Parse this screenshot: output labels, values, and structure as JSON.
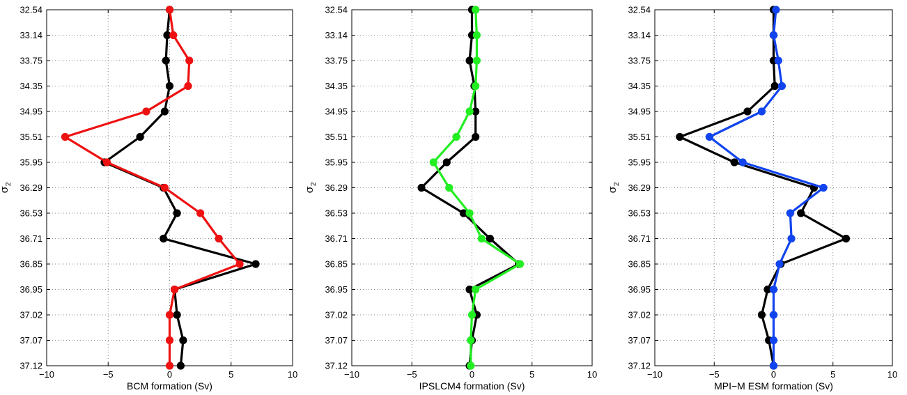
{
  "chart_data": [
    {
      "type": "line",
      "xlabel": "BCM formation (Sv)",
      "ylabel": {
        "symbol": "σ",
        "subscript": "2"
      },
      "xlim": [
        -10,
        10
      ],
      "xticks": [
        "−10",
        "−5",
        "0",
        "5",
        "10"
      ],
      "yticks": [
        "32.54",
        "33.14",
        "33.75",
        "34.35",
        "34.95",
        "35.51",
        "35.95",
        "36.29",
        "36.53",
        "36.71",
        "36.85",
        "36.95",
        "37.02",
        "37.07",
        "37.12"
      ],
      "grid": true,
      "series": [
        {
          "color": "#000000",
          "values": [
            0.0,
            -0.2,
            -0.3,
            0.0,
            -0.4,
            -2.4,
            -5.3,
            -0.5,
            0.6,
            -0.5,
            7.0,
            0.4,
            0.6,
            1.1,
            0.9
          ]
        },
        {
          "color": "#ee1111",
          "values": [
            0.0,
            0.3,
            1.6,
            1.5,
            -1.9,
            -8.5,
            -5.1,
            -0.4,
            2.5,
            4.0,
            5.7,
            0.4,
            0.0,
            0.0,
            0.0
          ]
        }
      ]
    },
    {
      "type": "line",
      "xlabel": "IPSLCM4 formation (Sv)",
      "ylabel": {
        "symbol": "σ",
        "subscript": "2"
      },
      "xlim": [
        -10,
        10
      ],
      "xticks": [
        "−10",
        "−5",
        "0",
        "5",
        "10"
      ],
      "yticks": [
        "32.54",
        "33.14",
        "33.75",
        "34.35",
        "34.95",
        "35.51",
        "35.95",
        "36.29",
        "36.53",
        "36.71",
        "36.85",
        "36.95",
        "37.02",
        "37.07",
        "37.12"
      ],
      "grid": true,
      "series": [
        {
          "color": "#000000",
          "values": [
            0.0,
            0.0,
            -0.2,
            0.2,
            0.3,
            0.3,
            -2.1,
            -4.2,
            -0.7,
            1.5,
            3.9,
            -0.2,
            0.4,
            0.0,
            -0.2
          ]
        },
        {
          "color": "#22ee22",
          "values": [
            0.3,
            0.4,
            0.4,
            0.3,
            -0.2,
            -1.3,
            -3.2,
            -1.9,
            -0.2,
            0.8,
            4.0,
            0.3,
            0.0,
            -0.1,
            -0.1
          ]
        }
      ]
    },
    {
      "type": "line",
      "xlabel": "MPI−M ESM formation (Sv)",
      "ylabel": {
        "symbol": "σ",
        "subscript": "2"
      },
      "xlim": [
        -10,
        10
      ],
      "xticks": [
        "−10",
        "−5",
        "0",
        "5",
        "10"
      ],
      "yticks": [
        "32.54",
        "33.14",
        "33.75",
        "34.35",
        "34.95",
        "35.51",
        "35.95",
        "36.29",
        "36.53",
        "36.71",
        "36.85",
        "36.95",
        "37.02",
        "37.07",
        "37.12"
      ],
      "grid": true,
      "series": [
        {
          "color": "#000000",
          "values": [
            0.0,
            0.0,
            0.0,
            0.1,
            -2.2,
            -7.9,
            -3.3,
            3.4,
            2.3,
            6.1,
            0.6,
            -0.5,
            -1.0,
            -0.4,
            0.0
          ]
        },
        {
          "color": "#1144ee",
          "values": [
            0.2,
            0.0,
            0.4,
            0.7,
            -1.0,
            -5.4,
            -2.6,
            4.2,
            1.4,
            1.5,
            0.5,
            0.0,
            0.0,
            0.0,
            0.0
          ]
        }
      ]
    }
  ]
}
